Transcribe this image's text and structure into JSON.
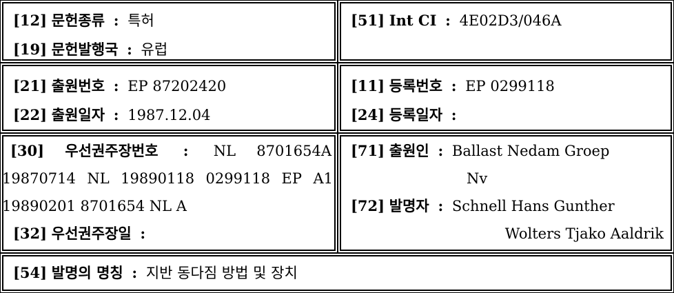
{
  "sections": {
    "s1": {
      "f12": {
        "code": "[12]",
        "label": "문헌종류",
        "sep": ":",
        "value": "특허"
      },
      "f19": {
        "code": "[19]",
        "label": "문헌발행국",
        "sep": ":",
        "value": "유럽"
      }
    },
    "s2": {
      "f51": {
        "code": "[51]",
        "label": "Int CI",
        "sep": ":",
        "value": "4E02D3/046A"
      }
    },
    "s3": {
      "f21": {
        "code": "[21]",
        "label": "출원번호",
        "sep": ":",
        "value": "EP 87202420"
      },
      "f22": {
        "code": "[22]",
        "label": "출원일자",
        "sep": ":",
        "value": "1987.12.04"
      }
    },
    "s4": {
      "f11": {
        "code": "[11]",
        "label": "등록번호",
        "sep": ":",
        "value": "EP 0299118"
      },
      "f24": {
        "code": "[24]",
        "label": "등록일자",
        "sep": ":",
        "value": ""
      }
    },
    "s5": {
      "f30": {
        "code": "[30]",
        "label": "우선권주장번호",
        "sep": ":",
        "value_line1": "NL 8701654A",
        "value_line2": "19870714 NL 19890118 0299118 EP A1",
        "value_line3": "19890201 8701654 NL A"
      },
      "f32": {
        "code": "[32]",
        "label": "우선권주장일",
        "sep": ":",
        "value": ""
      }
    },
    "s6": {
      "f71": {
        "code": "[71]",
        "label": "출원인",
        "sep": ":",
        "value_line1": "Ballast Nedam Groep",
        "value_line2": "Nv"
      },
      "f72": {
        "code": "[72]",
        "label": "발명자",
        "sep": ":",
        "value_line1": "Schnell Hans Gunther",
        "value_line2": "Wolters Tjako Aaldrik"
      }
    },
    "s7": {
      "f54": {
        "code": "[54]",
        "label": "발명의 명칭",
        "sep": ":",
        "value": "지반 동다짐 방법 및 장치"
      }
    }
  }
}
